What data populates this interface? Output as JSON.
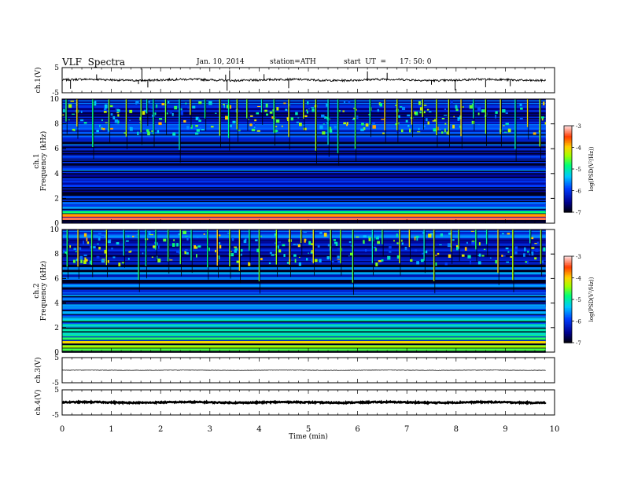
{
  "header": {
    "title": "VLF  Spectra",
    "date": "Jan. 10, 2014",
    "station": "station=ATH",
    "start_label": "start  UT  =",
    "start_time": "17: 50: 0"
  },
  "chart_data": [
    {
      "type": "line",
      "panel": "ch1-waveform",
      "ylabel": "ch.1(V)",
      "ylim": [
        -5,
        5
      ],
      "yticks": [
        "5",
        "-5"
      ],
      "x_range_min": [
        0,
        9.82
      ],
      "baseline_v": 0.1,
      "noise_v": 0.8,
      "spikes": [
        {
          "t": 0.17,
          "v": -3.4
        },
        {
          "t": 0.7,
          "v": 2.3
        },
        {
          "t": 1.55,
          "v": -1.6
        },
        {
          "t": 1.62,
          "v": 4.6
        },
        {
          "t": 1.74,
          "v": -2.9
        },
        {
          "t": 3.32,
          "v": 2.2
        },
        {
          "t": 3.35,
          "v": -4.2
        },
        {
          "t": 3.4,
          "v": 3.9
        },
        {
          "t": 4.1,
          "v": 2.4
        },
        {
          "t": 4.6,
          "v": -3.2
        },
        {
          "t": 6.2,
          "v": 3.5
        },
        {
          "t": 6.6,
          "v": 2.9
        },
        {
          "t": 7.5,
          "v": -1.8
        },
        {
          "t": 7.98,
          "v": -4.1
        },
        {
          "t": 8.6,
          "v": -2.8
        },
        {
          "t": 9.1,
          "v": -2.4
        }
      ]
    },
    {
      "type": "heatmap",
      "panel": "ch1-spectrogram",
      "ylabel": "ch.1 Frequency (kHz)",
      "ylim": [
        0,
        10
      ],
      "yticks": [
        "0",
        "2",
        "4",
        "6",
        "8",
        "10"
      ],
      "x_range_min": [
        0,
        9.82
      ],
      "colorbar": {
        "label": "log(PSD(V²/Hz))",
        "range": [
          -7,
          -3
        ],
        "ticks": [
          "-3",
          "-4",
          "-5",
          "-6",
          "-7"
        ]
      },
      "bands_khz": [
        {
          "f": 0.35,
          "level": -3.3
        },
        {
          "f": 0.65,
          "level": -3.8
        },
        {
          "f": 0.9,
          "level": -4.8
        },
        {
          "f": 1.25,
          "level": -5.5
        },
        {
          "f": 1.6,
          "level": -5.7
        },
        {
          "f": 2.1,
          "level": -5.8
        },
        {
          "f": 3.0,
          "level": -5.9
        },
        {
          "f": 4.4,
          "level": -5.9
        },
        {
          "f": 5.3,
          "level": -6.0
        },
        {
          "f": 6.7,
          "level": -6.2
        }
      ],
      "background_level": -6.6,
      "upper_band_level": -5.9,
      "sferic_times_min": [
        0.08,
        0.3,
        0.62,
        0.95,
        1.3,
        1.6,
        1.72,
        1.85,
        2.1,
        2.38,
        2.6,
        2.9,
        3.2,
        3.38,
        3.55,
        3.75,
        4.05,
        4.3,
        4.6,
        4.9,
        5.15,
        5.4,
        5.6,
        5.95,
        6.25,
        6.55,
        6.8,
        7.1,
        7.32,
        7.6,
        7.85,
        8.1,
        8.35,
        8.6,
        8.9,
        9.2,
        9.45,
        9.7
      ]
    },
    {
      "type": "heatmap",
      "panel": "ch2-spectrogram",
      "ylabel": "ch.2 Frequency (kHz)",
      "ylim": [
        0,
        10
      ],
      "yticks": [
        "0",
        "2",
        "4",
        "6",
        "8",
        "10"
      ],
      "x_range_min": [
        0,
        9.82
      ],
      "colorbar": {
        "label": "log(PSD(V²/Hz))",
        "range": [
          -7,
          -3
        ],
        "ticks": [
          "-3",
          "-4",
          "-5",
          "-6",
          "-7"
        ]
      },
      "bands_khz": [
        {
          "f": 0.2,
          "level": -4.6
        },
        {
          "f": 0.45,
          "level": -4.3
        },
        {
          "f": 0.8,
          "level": -4.0
        },
        {
          "f": 1.1,
          "level": -4.7
        },
        {
          "f": 1.5,
          "level": -5.1
        },
        {
          "f": 1.8,
          "level": -5.0
        },
        {
          "f": 2.2,
          "level": -5.1
        },
        {
          "f": 2.7,
          "level": -5.3
        },
        {
          "f": 3.2,
          "level": -5.4
        },
        {
          "f": 3.8,
          "level": -5.5
        },
        {
          "f": 4.3,
          "level": -5.6
        },
        {
          "f": 5.0,
          "level": -6.1
        },
        {
          "f": 6.2,
          "level": -6.3
        }
      ],
      "background_level": -6.6,
      "upper_band_level": -5.6,
      "sferic_times_min": [
        0.1,
        0.32,
        0.6,
        0.9,
        1.25,
        1.55,
        1.7,
        1.9,
        2.15,
        2.4,
        2.62,
        2.95,
        3.15,
        3.4,
        3.6,
        3.8,
        4.0,
        4.35,
        4.62,
        4.85,
        5.1,
        5.45,
        5.65,
        5.9,
        6.3,
        6.5,
        6.85,
        7.05,
        7.35,
        7.55,
        7.9,
        8.05,
        8.4,
        8.62,
        8.85,
        9.15,
        9.5,
        9.72
      ]
    },
    {
      "type": "line",
      "panel": "ch3-waveform",
      "ylabel": "ch.3(V)",
      "ylim": [
        -5,
        5
      ],
      "yticks": [
        "5",
        "-5"
      ],
      "x_range_min": [
        0,
        9.82
      ],
      "baseline_v": 0.0,
      "noise_v": 0.12
    },
    {
      "type": "line",
      "panel": "ch4-waveform",
      "ylabel": "ch.4(V)",
      "ylim": [
        -5,
        5
      ],
      "yticks": [
        "5",
        "-5"
      ],
      "x_range_min": [
        0,
        9.82
      ],
      "baseline_v": 0.0,
      "noise_v": 0.45
    }
  ],
  "x_axis": {
    "label": "Time  (min)",
    "xlim": [
      0,
      10
    ],
    "ticks": [
      "0",
      "1",
      "2",
      "3",
      "4",
      "5",
      "6",
      "7",
      "8",
      "9",
      "10"
    ]
  }
}
